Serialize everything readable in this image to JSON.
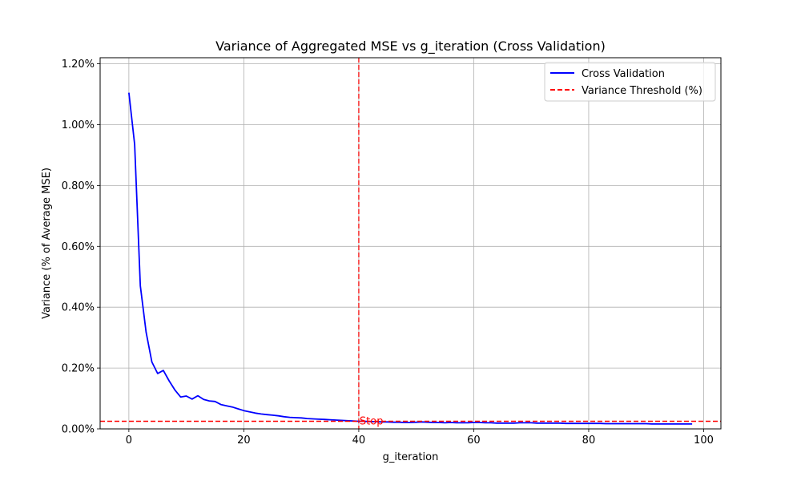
{
  "chart_data": {
    "type": "line",
    "title": "Variance of Aggregated MSE vs g_iteration (Cross Validation)",
    "xlabel": "g_iteration",
    "ylabel": "Variance (% of Average MSE)",
    "xlim": [
      -5,
      103
    ],
    "ylim": [
      0,
      1.22
    ],
    "x_ticks": [
      0,
      20,
      40,
      60,
      80,
      100
    ],
    "x_tick_labels": [
      "0",
      "20",
      "40",
      "60",
      "80",
      "100"
    ],
    "y_ticks": [
      0,
      0.2,
      0.4,
      0.6,
      0.8,
      1.0,
      1.2
    ],
    "y_tick_labels": [
      "0.00%",
      "0.20%",
      "0.40%",
      "0.60%",
      "0.80%",
      "1.00%",
      "1.20%"
    ],
    "grid": true,
    "legend_position": "top-right",
    "series": [
      {
        "name": "Cross Validation",
        "color": "#0000ff",
        "x": [
          0,
          1,
          2,
          3,
          4,
          5,
          6,
          7,
          8,
          9,
          10,
          11,
          12,
          13,
          14,
          15,
          16,
          17,
          18,
          19,
          20,
          21,
          22,
          23,
          24,
          25,
          26,
          27,
          28,
          29,
          30,
          31,
          32,
          33,
          34,
          35,
          36,
          37,
          38,
          39,
          40,
          41,
          42,
          43,
          44,
          45,
          46,
          47,
          48,
          49,
          50,
          51,
          52,
          53,
          54,
          55,
          56,
          57,
          58,
          59,
          60,
          61,
          62,
          63,
          64,
          65,
          66,
          67,
          68,
          69,
          70,
          71,
          72,
          73,
          74,
          75,
          76,
          77,
          78,
          79,
          80,
          81,
          82,
          83,
          84,
          85,
          86,
          87,
          88,
          89,
          90,
          91,
          92,
          93,
          94,
          95,
          96,
          97,
          98
        ],
        "y": [
          1.105,
          0.935,
          0.47,
          0.318,
          0.22,
          0.182,
          0.192,
          0.158,
          0.128,
          0.105,
          0.108,
          0.098,
          0.109,
          0.097,
          0.092,
          0.09,
          0.08,
          0.076,
          0.072,
          0.066,
          0.06,
          0.056,
          0.052,
          0.049,
          0.047,
          0.045,
          0.043,
          0.04,
          0.038,
          0.037,
          0.036,
          0.034,
          0.033,
          0.032,
          0.031,
          0.03,
          0.029,
          0.028,
          0.027,
          0.026,
          0.025,
          0.025,
          0.024,
          0.024,
          0.023,
          0.023,
          0.022,
          0.022,
          0.021,
          0.021,
          0.022,
          0.023,
          0.022,
          0.021,
          0.021,
          0.02,
          0.021,
          0.02,
          0.02,
          0.02,
          0.021,
          0.021,
          0.02,
          0.02,
          0.019,
          0.019,
          0.019,
          0.019,
          0.02,
          0.02,
          0.02,
          0.019,
          0.019,
          0.019,
          0.019,
          0.019,
          0.018,
          0.018,
          0.018,
          0.018,
          0.018,
          0.018,
          0.018,
          0.017,
          0.017,
          0.017,
          0.017,
          0.017,
          0.017,
          0.017,
          0.017,
          0.016,
          0.016,
          0.016,
          0.016,
          0.016,
          0.016,
          0.016,
          0.016
        ]
      }
    ],
    "threshold": {
      "name": "Variance Threshold (%)",
      "value": 0.025,
      "color": "#ff0000"
    },
    "stop": {
      "x": 40,
      "label": "Stop",
      "color": "#ff0000"
    }
  }
}
